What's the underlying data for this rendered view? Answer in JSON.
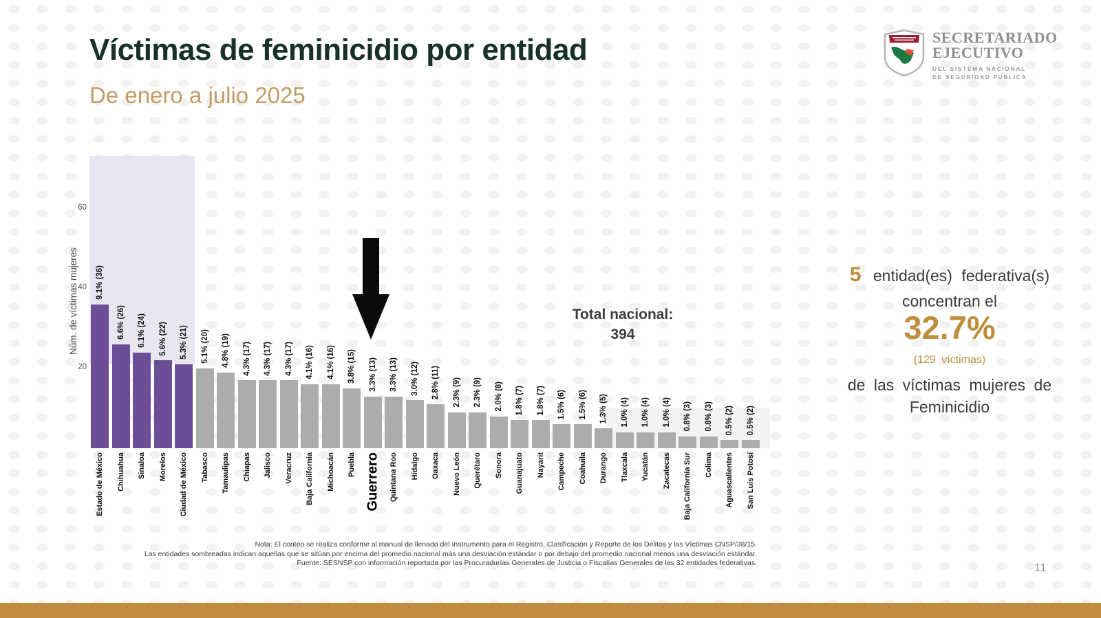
{
  "header": {
    "title": "Víctimas de feminicidio por entidad",
    "subtitle": "De enero a julio 2025",
    "page_number": "11"
  },
  "logo": {
    "title_line1": "SECRETARIADO",
    "title_line2": "EJECUTIVO",
    "sub_line1": "DEL SISTEMA NACIONAL",
    "sub_line2": "DE SEGURIDAD PÚBLICA"
  },
  "chart_data": {
    "type": "bar",
    "ylabel": "Núm. de víctimas mujeres",
    "xlabel": "",
    "yticks": [
      20,
      40,
      60
    ],
    "ylim": [
      0,
      73
    ],
    "grid": false,
    "total_annotation": {
      "label": "Total nacional:",
      "value": "394"
    },
    "highlighted_state": "Guerrero",
    "categories": [
      "Estado de México",
      "Chihuahua",
      "Sinaloa",
      "Morelos",
      "Ciudad de México",
      "Tabasco",
      "Tamaulipas",
      "Chiapas",
      "Jalisco",
      "Veracruz",
      "Baja California",
      "Michoacán",
      "Puebla",
      "Guerrero",
      "Quintana Roo",
      "Hidalgo",
      "Oaxaca",
      "Nuevo León",
      "Querétaro",
      "Sonora",
      "Guanajuato",
      "Nayarit",
      "Campeche",
      "Coahuila",
      "Durango",
      "Tlaxcala",
      "Yucatán",
      "Zacatecas",
      "Baja California Sur",
      "Colima",
      "Aguascalientes",
      "San Luis Potosí"
    ],
    "values": [
      36,
      26,
      24,
      22,
      21,
      20,
      19,
      17,
      17,
      17,
      16,
      16,
      15,
      13,
      13,
      12,
      11,
      9,
      9,
      8,
      7,
      7,
      6,
      6,
      5,
      4,
      4,
      4,
      3,
      3,
      2,
      2
    ],
    "labels": [
      "9.1% (36)",
      "6.6% (26)",
      "6.1% (24)",
      "5.6% (22)",
      "5.3% (21)",
      "5.1% (20)",
      "4.8% (19)",
      "4.3% (17)",
      "4.3% (17)",
      "4.3% (17)",
      "4.1% (16)",
      "4.1% (16)",
      "3.8% (15)",
      "3.3% (13)",
      "3.3% (13)",
      "3.0% (12)",
      "2.8% (11)",
      "2.3% (9)",
      "2.3% (9)",
      "2.0% (8)",
      "1.8% (7)",
      "1.8% (7)",
      "1.5% (6)",
      "1.5% (6)",
      "1.3% (5)",
      "1.0% (4)",
      "1.0% (4)",
      "1.0% (4)",
      "0.8% (3)",
      "0.8% (3)",
      "0.5% (2)",
      "0.5% (2)"
    ],
    "groups": [
      "high",
      "high",
      "high",
      "high",
      "high",
      "mid",
      "mid",
      "mid",
      "mid",
      "mid",
      "mid",
      "mid",
      "mid",
      "mid",
      "mid",
      "mid",
      "mid",
      "mid",
      "mid",
      "mid",
      "mid",
      "mid",
      "mid",
      "mid",
      "mid",
      "low",
      "low",
      "low",
      "low",
      "low",
      "low",
      "low"
    ]
  },
  "callout": {
    "count": "5",
    "entities": "entidad(es)  federativa(s)",
    "line2": "concentran el",
    "pct": "32.7%",
    "victims": "(129  víctimas)",
    "line3": "de las  víctimas  mujeres de",
    "line4": "Feminicidio"
  },
  "notes": {
    "lines": [
      "Nota: El conteo se realiza conforme al manual de llenado del Instrumento para el Registro, Clasificación y Reporte de los Delitos y las Víctimas CNSP/38/15.",
      "Las entidades sombreadas indican aquellas que se sitúan por encima del promedio nacional más una desviación estándar o por debajo del promedio nacional menos una desviación estándar.",
      "Fuente: SESNSP con información reportada por las Procuradurías Generales de Justicia o Fiscalías Generales de las 32 entidades federativas."
    ]
  },
  "colors": {
    "title_green": "#17312A",
    "subtitle_tan": "#C49B64",
    "accent_gold": "#BD8F3D",
    "bottom_bar_gold": "#C38B42",
    "bar_highlight_purple": "#6B4E95",
    "bar_default_gray": "#ACACAC",
    "shaded_high_bg": "#E8E6F1",
    "shaded_low_bg": "#F4F3F3",
    "text_dark": "#3C3C3C"
  }
}
